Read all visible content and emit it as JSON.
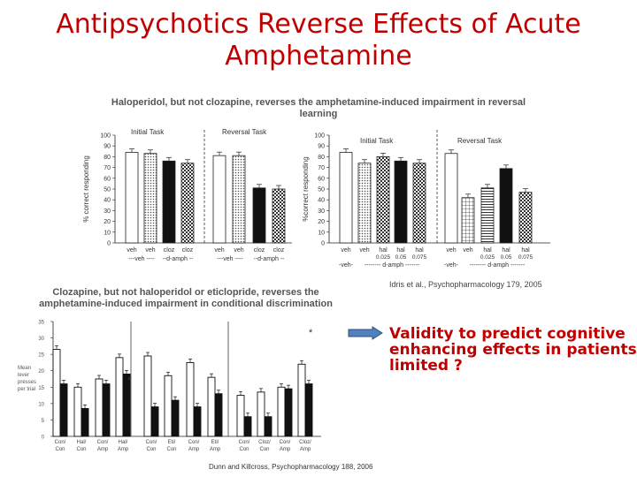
{
  "title": "Antipsychotics Reverse Effects of Acute Amphetamine",
  "subtitle_top": "Haloperidol, but not clozapine, reverses the amphetamine-induced impairment in reversal learning",
  "subtitle_bottom": "Clozapine, but not haloperidol or eticlopride, reverses the amphetamine-induced impairment in conditional discrimination",
  "citation_top": "Idris et al., Psychopharmacology 179, 2005",
  "citation_bottom": "Dunn and Killcross, Psychopharmacology 188, 2006",
  "validity_text": "Validity to predict cognitive enhancing effects in patients limited ?",
  "arrow_color": "#4f81bd",
  "chart_data": [
    {
      "type": "bar",
      "ylabel": "% correct responding",
      "ylim": [
        0,
        100
      ],
      "yticks": [
        0,
        10,
        20,
        30,
        40,
        50,
        60,
        70,
        80,
        90,
        100
      ],
      "panels": [
        "Initial Task",
        "Reversal Task"
      ],
      "categories": [
        "veh",
        "veh",
        "cloz",
        "cloz",
        "veh",
        "veh",
        "cloz",
        "cloz"
      ],
      "group_labels": [
        "---veh ----",
        "--d-amph --",
        "---veh ----",
        "--d-amph --"
      ],
      "values": [
        84,
        83,
        76,
        74,
        81,
        81,
        51,
        50
      ],
      "patterns": [
        "white",
        "dots",
        "black",
        "checker",
        "white",
        "dots",
        "black",
        "checker"
      ]
    },
    {
      "type": "bar",
      "ylabel": "%correct responding",
      "ylim": [
        0,
        100
      ],
      "yticks": [
        0,
        10,
        20,
        30,
        40,
        50,
        60,
        70,
        80,
        90,
        100
      ],
      "panels": [
        "Initial Task",
        "Reversal Task"
      ],
      "categories": [
        "veh",
        "veh",
        "hal",
        "hal",
        "hal",
        "veh",
        "veh",
        "hal",
        "hal",
        "hal"
      ],
      "doses": [
        "",
        "",
        "0.025",
        "0.05",
        "0.075",
        "",
        "",
        "0.025",
        "0.05",
        "0.075"
      ],
      "group_labels": [
        "-veh-",
        "-------- d-amph -------",
        "-veh-",
        "-------- d-amph -------"
      ],
      "values": [
        84,
        74,
        80,
        76,
        74,
        83,
        42,
        51,
        69,
        47
      ],
      "patterns": [
        "white",
        "dots",
        "checker",
        "black",
        "checker",
        "white",
        "grid",
        "stripe",
        "black",
        "checker"
      ]
    },
    {
      "type": "bar",
      "ylabel": "Mean lever presses per trial",
      "ylim": [
        0,
        35
      ],
      "yticks": [
        0,
        5,
        10,
        15,
        20,
        25,
        30,
        35
      ],
      "categories": [
        "Con/ Con",
        "Hal/ Con",
        "Con/ Amp",
        "Hal/ Amp",
        "Con/ Con",
        "Eti/ Con",
        "Con/ Amp",
        "Eti/ Amp",
        "Con/ Con",
        "Cloz/ Con",
        "Con/ Amp",
        "Cloz/ Amp"
      ],
      "series": [
        {
          "values": [
            26.5,
            15,
            17.5,
            24,
            24.5,
            18.5,
            22.5,
            18,
            12.5,
            13.5,
            15,
            22
          ]
        },
        {
          "values": [
            16,
            8.5,
            16,
            19,
            9,
            11,
            9,
            13,
            6,
            6,
            14.5,
            16
          ]
        }
      ],
      "annotations": [
        "*",
        "*"
      ]
    }
  ]
}
